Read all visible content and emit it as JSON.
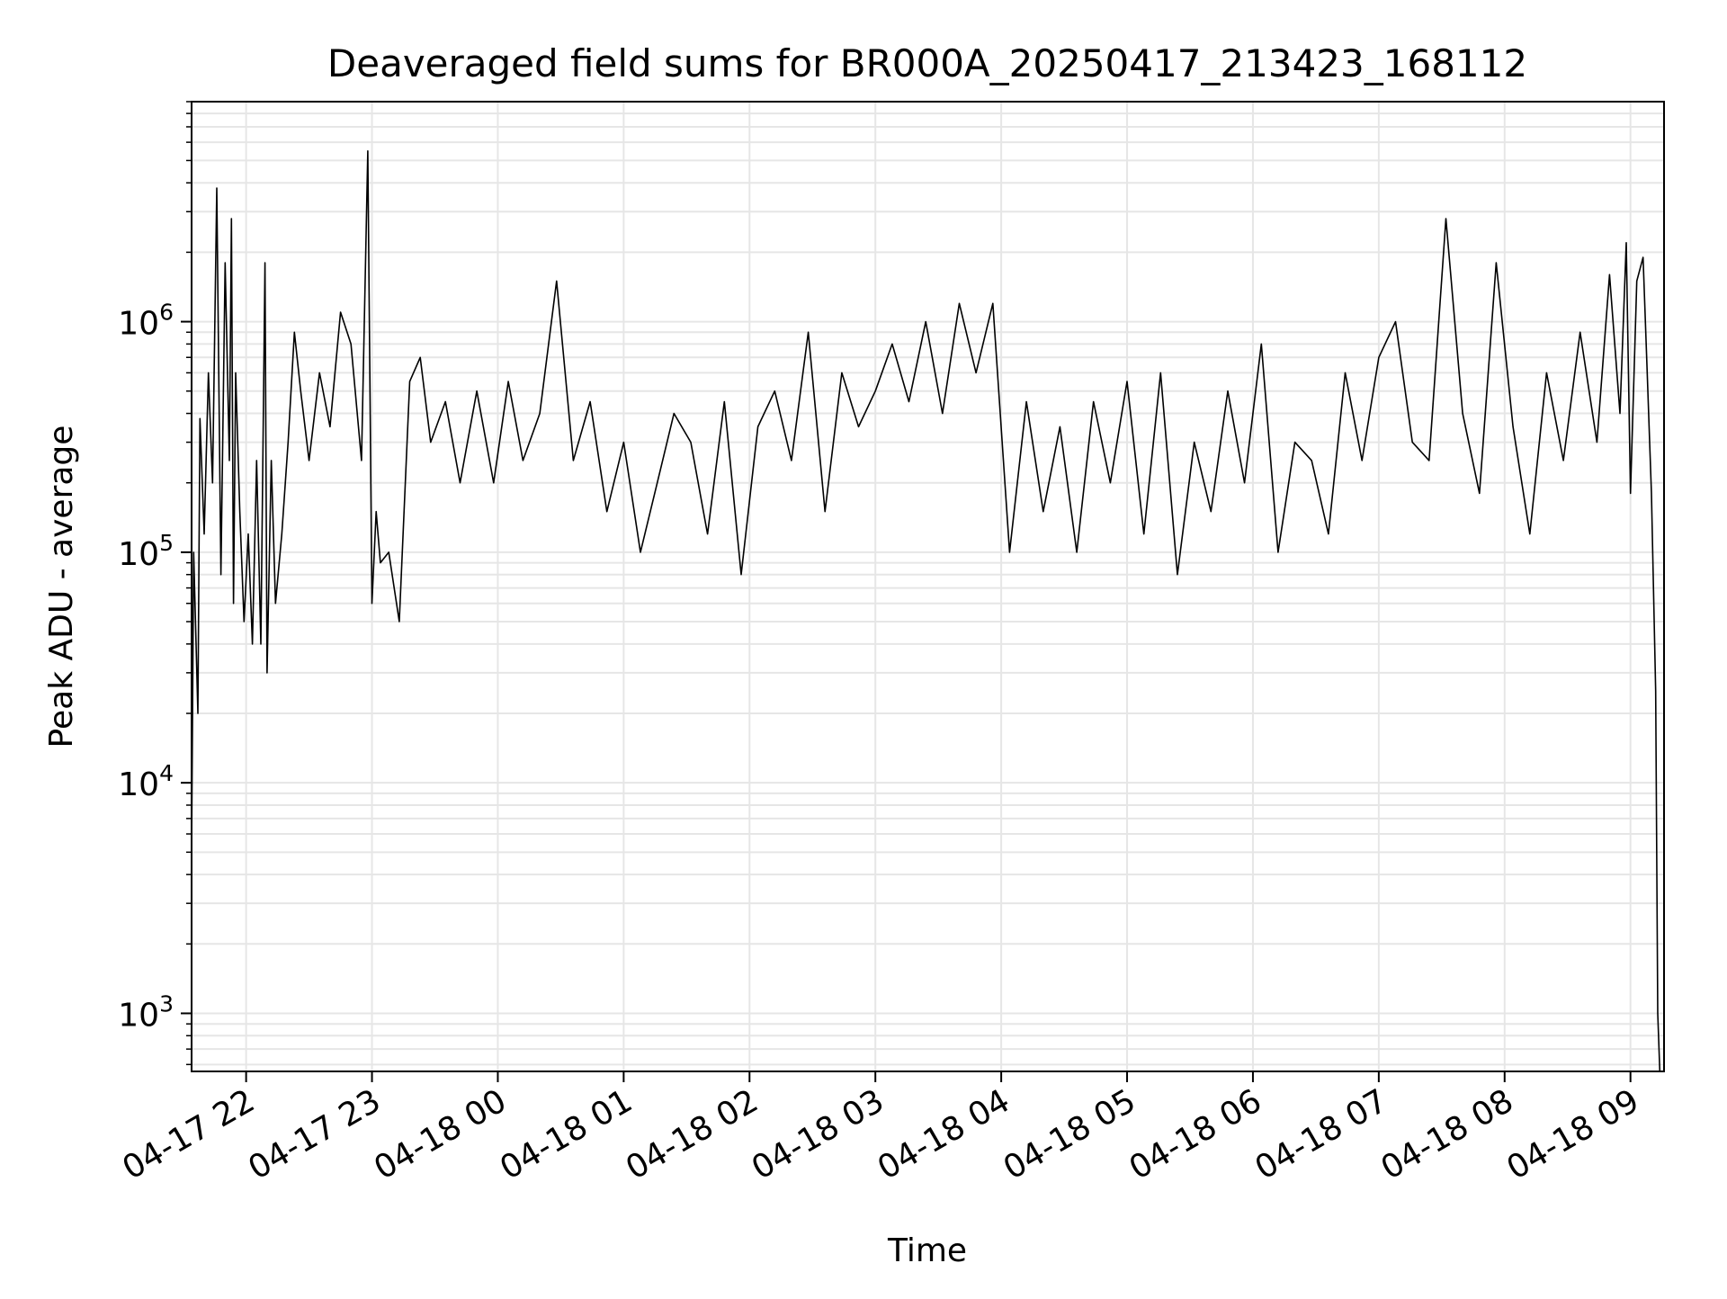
{
  "chart_data": {
    "type": "line",
    "title": "Deaveraged field sums for BR000A_20250417_213423_168112",
    "xlabel": "Time",
    "ylabel": "Peak ADU - average",
    "y_scale": "log",
    "ylim": [
      560,
      9000000
    ],
    "xlim": [
      "2025-04-17 21:34",
      "2025-04-18 09:16"
    ],
    "grid": true,
    "line_color": "#000000",
    "grid_color": "#e6e6e6",
    "x_ticks": [
      {
        "label": "04-17 22",
        "value": "2025-04-17 22:00"
      },
      {
        "label": "04-17 23",
        "value": "2025-04-17 23:00"
      },
      {
        "label": "04-18 00",
        "value": "2025-04-18 00:00"
      },
      {
        "label": "04-18 01",
        "value": "2025-04-18 01:00"
      },
      {
        "label": "04-18 02",
        "value": "2025-04-18 02:00"
      },
      {
        "label": "04-18 03",
        "value": "2025-04-18 03:00"
      },
      {
        "label": "04-18 04",
        "value": "2025-04-18 04:00"
      },
      {
        "label": "04-18 05",
        "value": "2025-04-18 05:00"
      },
      {
        "label": "04-18 06",
        "value": "2025-04-18 06:00"
      },
      {
        "label": "04-18 07",
        "value": "2025-04-18 07:00"
      },
      {
        "label": "04-18 08",
        "value": "2025-04-18 08:00"
      },
      {
        "label": "04-18 09",
        "value": "2025-04-18 09:00"
      }
    ],
    "y_ticks": [
      {
        "base": "10",
        "exp": "3",
        "value": 1000
      },
      {
        "base": "10",
        "exp": "4",
        "value": 10000
      },
      {
        "base": "10",
        "exp": "5",
        "value": 100000
      },
      {
        "base": "10",
        "exp": "6",
        "value": 1000000
      }
    ],
    "series": [
      {
        "x": [
          "2025-04-17 21:34",
          "2025-04-17 21:35",
          "2025-04-17 21:37",
          "2025-04-17 21:38",
          "2025-04-17 21:40",
          "2025-04-17 21:42",
          "2025-04-17 21:44",
          "2025-04-17 21:46",
          "2025-04-17 21:48",
          "2025-04-17 21:50",
          "2025-04-17 21:52",
          "2025-04-17 21:53",
          "2025-04-17 21:54",
          "2025-04-17 21:55",
          "2025-04-17 21:57",
          "2025-04-17 21:59",
          "2025-04-17 22:01",
          "2025-04-17 22:03",
          "2025-04-17 22:05",
          "2025-04-17 22:07",
          "2025-04-17 22:09",
          "2025-04-17 22:10",
          "2025-04-17 22:12",
          "2025-04-17 22:14",
          "2025-04-17 22:17",
          "2025-04-17 22:20",
          "2025-04-17 22:23",
          "2025-04-17 22:26",
          "2025-04-17 22:30",
          "2025-04-17 22:35",
          "2025-04-17 22:40",
          "2025-04-17 22:45",
          "2025-04-17 22:50",
          "2025-04-17 22:55",
          "2025-04-17 22:58",
          "2025-04-17 23:00",
          "2025-04-17 23:02",
          "2025-04-17 23:04",
          "2025-04-17 23:08",
          "2025-04-17 23:13",
          "2025-04-17 23:18",
          "2025-04-17 23:23",
          "2025-04-17 23:28",
          "2025-04-17 23:35",
          "2025-04-17 23:42",
          "2025-04-17 23:50",
          "2025-04-17 23:58",
          "2025-04-18 00:05",
          "2025-04-18 00:12",
          "2025-04-18 00:20",
          "2025-04-18 00:28",
          "2025-04-18 00:36",
          "2025-04-18 00:44",
          "2025-04-18 00:52",
          "2025-04-18 01:00",
          "2025-04-18 01:08",
          "2025-04-18 01:16",
          "2025-04-18 01:24",
          "2025-04-18 01:32",
          "2025-04-18 01:40",
          "2025-04-18 01:48",
          "2025-04-18 01:56",
          "2025-04-18 02:04",
          "2025-04-18 02:12",
          "2025-04-18 02:20",
          "2025-04-18 02:28",
          "2025-04-18 02:36",
          "2025-04-18 02:44",
          "2025-04-18 02:52",
          "2025-04-18 03:00",
          "2025-04-18 03:08",
          "2025-04-18 03:16",
          "2025-04-18 03:24",
          "2025-04-18 03:32",
          "2025-04-18 03:40",
          "2025-04-18 03:48",
          "2025-04-18 03:56",
          "2025-04-18 04:04",
          "2025-04-18 04:12",
          "2025-04-18 04:20",
          "2025-04-18 04:28",
          "2025-04-18 04:36",
          "2025-04-18 04:44",
          "2025-04-18 04:52",
          "2025-04-18 05:00",
          "2025-04-18 05:08",
          "2025-04-18 05:16",
          "2025-04-18 05:24",
          "2025-04-18 05:32",
          "2025-04-18 05:40",
          "2025-04-18 05:48",
          "2025-04-18 05:56",
          "2025-04-18 06:04",
          "2025-04-18 06:12",
          "2025-04-18 06:20",
          "2025-04-18 06:28",
          "2025-04-18 06:36",
          "2025-04-18 06:44",
          "2025-04-18 06:52",
          "2025-04-18 07:00",
          "2025-04-18 07:08",
          "2025-04-18 07:16",
          "2025-04-18 07:24",
          "2025-04-18 07:32",
          "2025-04-18 07:40",
          "2025-04-18 07:48",
          "2025-04-18 07:56",
          "2025-04-18 08:04",
          "2025-04-18 08:12",
          "2025-04-18 08:20",
          "2025-04-18 08:28",
          "2025-04-18 08:36",
          "2025-04-18 08:44",
          "2025-04-18 08:50",
          "2025-04-18 08:55",
          "2025-04-18 08:58",
          "2025-04-18 09:00",
          "2025-04-18 09:03",
          "2025-04-18 09:06",
          "2025-04-18 09:08",
          "2025-04-18 09:10",
          "2025-04-18 09:12",
          "2025-04-18 09:13",
          "2025-04-18 09:14"
        ],
        "y": [
          5000,
          100000,
          20000,
          380000,
          120000,
          600000,
          200000,
          3800000,
          80000,
          1800000,
          250000,
          2800000,
          60000,
          600000,
          150000,
          50000,
          120000,
          40000,
          250000,
          40000,
          1800000,
          30000,
          250000,
          60000,
          120000,
          300000,
          900000,
          500000,
          250000,
          600000,
          350000,
          1100000,
          800000,
          250000,
          5500000,
          60000,
          150000,
          90000,
          100000,
          50000,
          550000,
          700000,
          300000,
          450000,
          200000,
          500000,
          200000,
          550000,
          250000,
          400000,
          1500000,
          250000,
          450000,
          150000,
          300000,
          100000,
          200000,
          400000,
          300000,
          120000,
          450000,
          80000,
          350000,
          500000,
          250000,
          900000,
          150000,
          600000,
          350000,
          500000,
          800000,
          450000,
          1000000,
          400000,
          1200000,
          600000,
          1200000,
          100000,
          450000,
          150000,
          350000,
          100000,
          450000,
          200000,
          550000,
          120000,
          600000,
          80000,
          300000,
          150000,
          500000,
          200000,
          800000,
          100000,
          300000,
          250000,
          120000,
          600000,
          250000,
          700000,
          1000000,
          300000,
          250000,
          2800000,
          400000,
          180000,
          1800000,
          350000,
          120000,
          600000,
          250000,
          900000,
          300000,
          1600000,
          400000,
          2200000,
          180000,
          1500000,
          1900000,
          600000,
          180000,
          25000,
          1000,
          560
        ]
      }
    ]
  }
}
